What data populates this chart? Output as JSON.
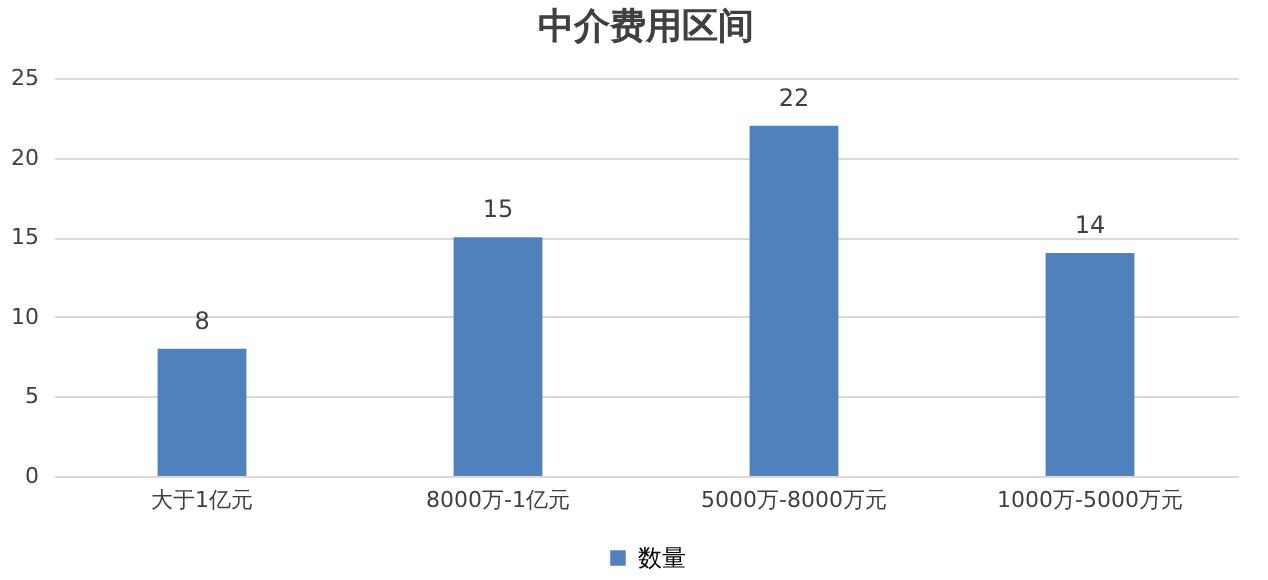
{
  "chart_data": {
    "type": "bar",
    "title": "中介费用区间",
    "categories": [
      "大于1亿元",
      "8000万-1亿元",
      "5000万-8000万元",
      "1000万-5000万元"
    ],
    "series": [
      {
        "name": "数量",
        "color": "#4f81bd",
        "values": [
          8,
          15,
          22,
          14
        ]
      }
    ],
    "ylim": [
      0,
      25
    ],
    "yticks": [
      0,
      5,
      10,
      15,
      20,
      25
    ],
    "grid": "y",
    "legend": "bottom",
    "data_labels": true
  }
}
